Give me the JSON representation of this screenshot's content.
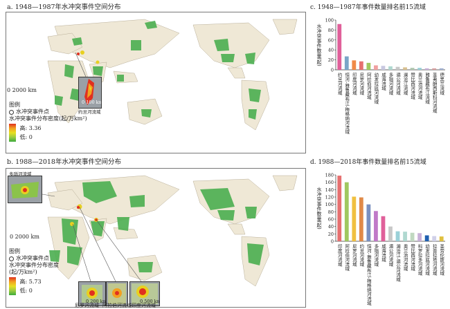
{
  "panel_a": {
    "title": "a. 1948—1987年水冲突事件空间分布",
    "scale_label": "0     2000 km",
    "legend_heading": "图例",
    "legend_points": "水冲突事件点",
    "legend_density": "水冲突事件分布密度(起/万km²)",
    "legend_high": "高: 3.36",
    "legend_low": "低: 0",
    "inset_scale": "0  100 km",
    "inset_label": "约旦河流域"
  },
  "panel_b": {
    "title": "b. 1988—2018年水冲突事件空间分布",
    "scale_label": "0     2000 km",
    "legend_heading": "图例",
    "legend_points": "水冲突事件点",
    "legend_density": "水冲突事件分布密度",
    "legend_density_unit": "(起/万km²)",
    "legend_high": "高: 5.73",
    "legend_low": "低: 0",
    "inset_topleft_label": "多瑙河流域",
    "inset_nile": "尼罗河流域",
    "inset_indus": "阿拉伯河流域",
    "inset_ganges": "印度河流域",
    "inset_nile_scale": "0  200 km",
    "inset_ganges_scale": "0  500 km"
  },
  "chart_c": {
    "title": "c. 1948—1987年事件数量排名前15流域",
    "ylabel": "水冲突事件数量(起)",
    "ylim": [
      0,
      100
    ],
    "ticks": [
      "0",
      "20",
      "40",
      "60",
      "80",
      "100"
    ],
    "categories": [
      "约旦河流域",
      "恒河-雅鲁藏布江-梅格纳河流域",
      "印度河流域",
      "尼罗河流域",
      "阿拉伯河流域",
      "幼发拉底河流域",
      "咸海流域",
      "多瑙河流域",
      "湄公河流域",
      "澜沧江流域",
      "赞比西河流域",
      "奥兰治河流域",
      "雅鲁藏布江流域",
      "圣弗朗西斯科河流域",
      "德黑兰流域"
    ],
    "values": [
      92,
      27,
      19,
      17,
      14,
      9,
      8,
      7,
      6,
      5,
      4,
      4,
      3,
      3,
      3
    ],
    "colors": [
      "#e0609a",
      "#7aa6c8",
      "#f08a48",
      "#e67070",
      "#a0c860",
      "#f0a0a0",
      "#c8c8e0",
      "#b0d8d0",
      "#c8c8c8",
      "#d8c090",
      "#b0c8b0",
      "#9ad0d8",
      "#c8b0d8",
      "#d8a0a0",
      "#a0b0d0"
    ]
  },
  "chart_d": {
    "title": "d. 1988—2018年事件数量排名前15流域",
    "ylabel": "水冲突事件数量(起)",
    "ylim": [
      0,
      180
    ],
    "ticks": [
      "0",
      "20",
      "40",
      "60",
      "80",
      "100",
      "120",
      "140",
      "160",
      "180"
    ],
    "categories": [
      "印度河流域",
      "阿拉伯河流域",
      "尼罗河流域",
      "约旦河流域",
      "恒河-雅鲁藏布江-梅格纳河流域",
      "多瑙河流域",
      "咸海流域",
      "湄公河流域",
      "澜沧江-湄公河流域",
      "奥兰治河流域",
      "赞比西河流域",
      "科罗拉多河流域",
      "幼发拉底河流域",
      "拉普拉塔河流域",
      "圣劳伦斯河流域"
    ],
    "values": [
      178,
      160,
      121,
      119,
      100,
      82,
      68,
      40,
      27,
      26,
      23,
      22,
      16,
      14,
      13
    ],
    "colors": [
      "#e67070",
      "#a0c860",
      "#f0c040",
      "#e08a48",
      "#7a90c0",
      "#c07ac8",
      "#e0609a",
      "#c8c8c8",
      "#9ad0d8",
      "#b0d8d0",
      "#c0d8c0",
      "#c8b0d8",
      "#2060b0",
      "#d0d0e8",
      "#e0c040"
    ]
  }
}
